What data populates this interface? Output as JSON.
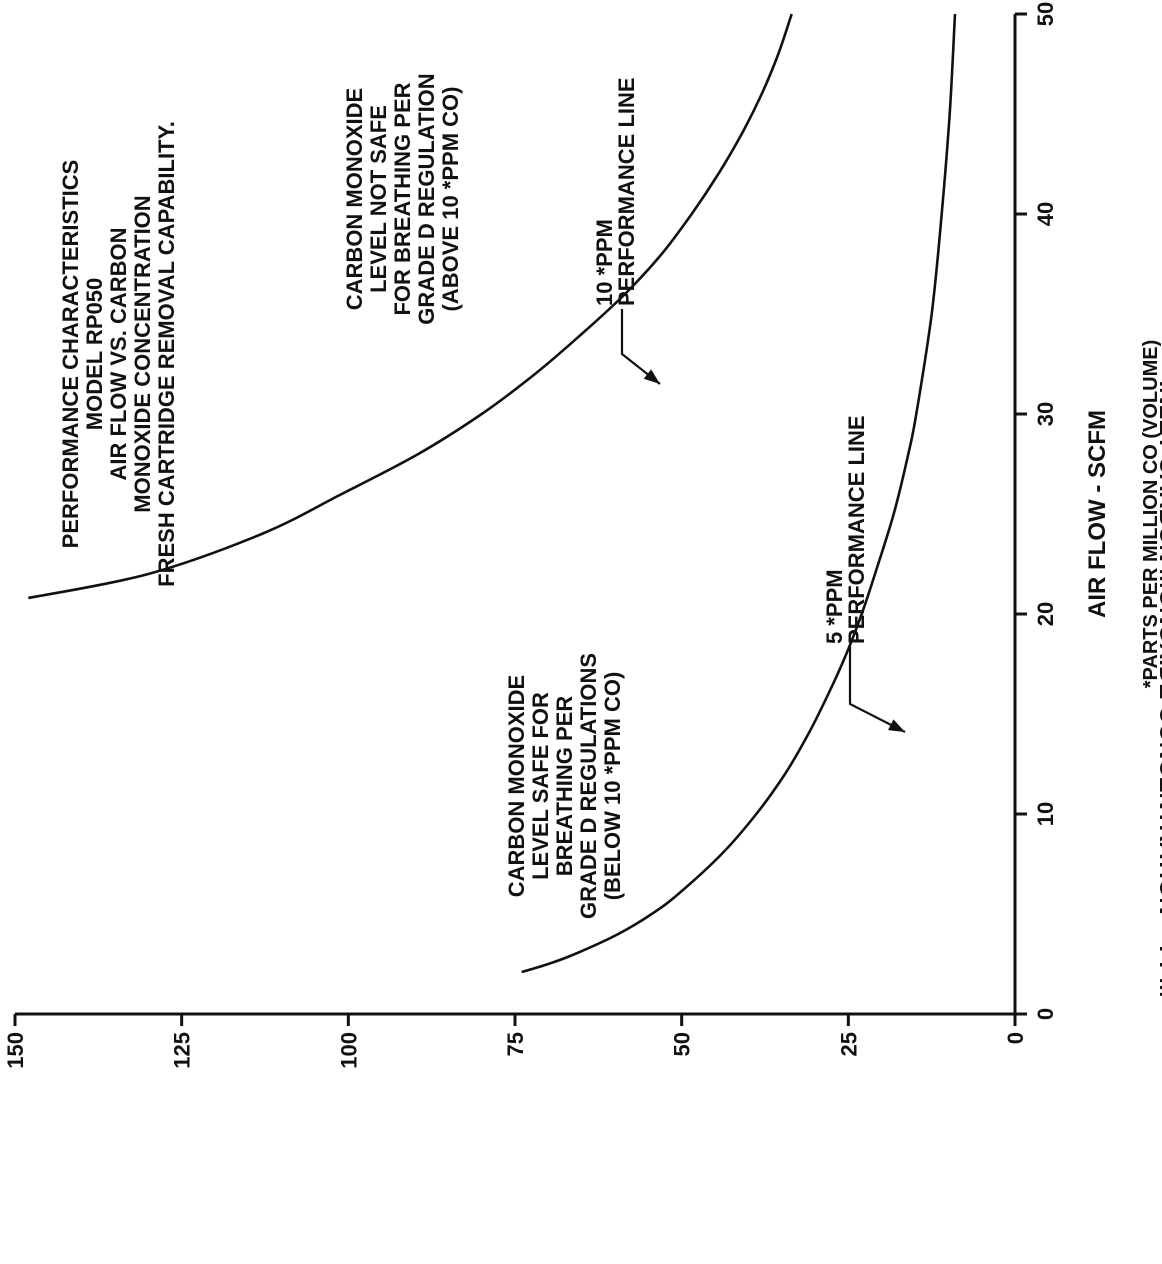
{
  "chart_data": {
    "type": "line",
    "title_lines": [
      "PERFORMANCE CHARACTERISTICS",
      "MODEL RP050",
      "AIR FLOW VS. CARBON",
      "MONOXIDE CONCENTRATION",
      "FRESH CARTRIDGE REMOVAL CAPABILITY."
    ],
    "xlabel": "AIR FLOW - SCFM",
    "ylabel": "INLET CARBON MONOXIDE CONCENTRATION - *PPM",
    "footnote": "*PARTS PER MILLION CO (VOLUME)",
    "xlim": [
      0,
      50
    ],
    "ylim": [
      0,
      150
    ],
    "x_ticks": [
      "0",
      "10",
      "20",
      "30",
      "40",
      "50"
    ],
    "y_ticks": [
      "0",
      "25",
      "50",
      "75",
      "100",
      "125",
      "150"
    ],
    "grid": false,
    "series": [
      {
        "name": "10 *PPM PERFORMANCE LINE",
        "label_lines": [
          "10 *PPM",
          "PERFORMANCE LINE"
        ],
        "x": [
          20.8,
          22,
          24,
          26,
          28,
          30,
          32,
          34,
          36,
          38,
          40,
          42,
          44,
          46,
          48,
          50
        ],
        "y": [
          148,
          130,
          113,
          101,
          89.5,
          80,
          72,
          65,
          58.5,
          53,
          48.5,
          44.5,
          41,
          38,
          35.5,
          33.5
        ]
      },
      {
        "name": "5 *PPM PERFORMANCE LINE",
        "label_lines": [
          "5 *PPM",
          "PERFORMANCE LINE"
        ],
        "x": [
          2.1,
          2.5,
          3,
          4,
          5,
          6,
          8,
          10,
          12,
          14,
          16,
          18,
          20,
          22,
          25,
          28,
          30,
          35,
          40,
          45,
          50
        ],
        "y": [
          74,
          70,
          66,
          59.5,
          54.5,
          50.5,
          44,
          38.8,
          34.5,
          31,
          28,
          25.3,
          23,
          21,
          18.2,
          16,
          14.8,
          12.5,
          11,
          9.8,
          9
        ]
      }
    ],
    "annotations": [
      {
        "id": "safe-region",
        "lines": [
          "CARBON MONOXIDE",
          "LEVEL SAFE FOR",
          "BREATHING PER",
          "GRADE D REGULATIONS",
          "(BELOW 10 *PPM CO)"
        ]
      },
      {
        "id": "unsafe-region",
        "lines": [
          "CARBON MONOXIDE",
          "LEVEL NOT SAFE",
          "FOR BREATHING PER",
          "GRADE D REGULATION",
          "(ABOVE 10 *PPM CO)"
        ]
      }
    ]
  }
}
